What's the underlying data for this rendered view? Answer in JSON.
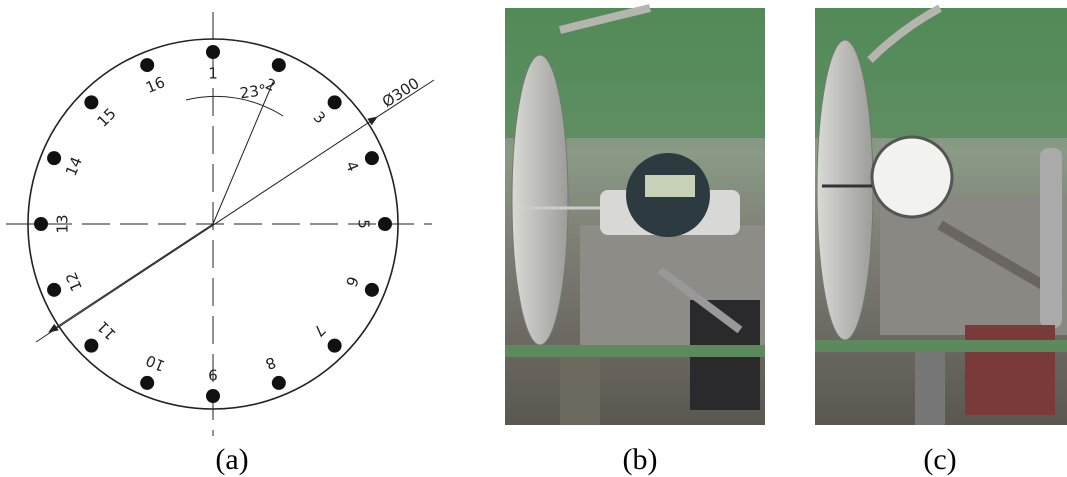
{
  "diagram": {
    "points": [
      "1",
      "2",
      "3",
      "4",
      "5",
      "6",
      "7",
      "8",
      "9",
      "10",
      "11",
      "12",
      "13",
      "14",
      "15",
      "16"
    ],
    "angle_label": "23°",
    "diameter_label": "Ø300"
  },
  "captions": [
    "(a)",
    "(b)",
    "(c)"
  ]
}
